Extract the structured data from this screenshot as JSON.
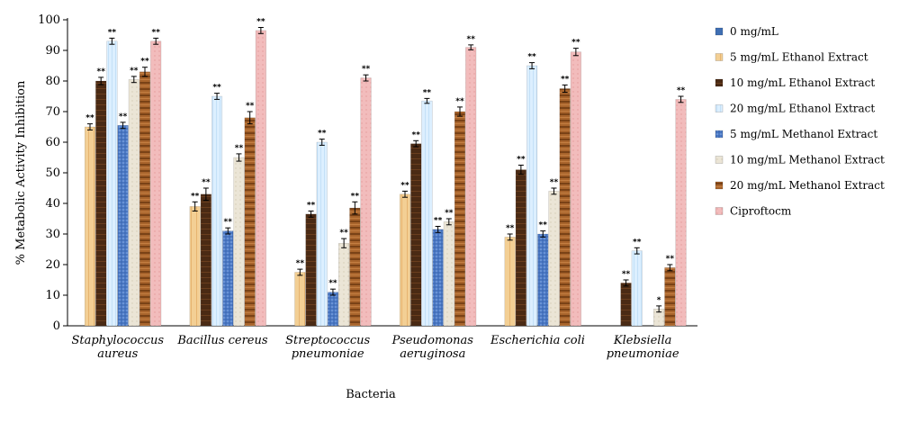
{
  "chart_data": {
    "type": "bar",
    "xlabel": "Bacteria",
    "ylabel": "% Metabolic Activity Inhibition",
    "ylim": [
      0,
      100
    ],
    "yticks": [
      0,
      10,
      20,
      30,
      40,
      50,
      60,
      70,
      80,
      90,
      100
    ],
    "legend_position": "right",
    "categories": [
      [
        "Staphylococcus",
        "aureus"
      ],
      [
        "Bacillus cereus"
      ],
      [
        "Streptococcus",
        "pneumoniae"
      ],
      [
        "Pseudomonas",
        "aeruginosa"
      ],
      [
        "Escherichia coli"
      ],
      [
        "Klebsiella",
        "pneumoniae"
      ]
    ],
    "series": [
      {
        "name": "0 mg/mL",
        "color": "#3f6fb3",
        "values": [
          0,
          0,
          0,
          0,
          0,
          0
        ],
        "errors": [
          0,
          0,
          0,
          0,
          0,
          0
        ],
        "sig": [
          "",
          "",
          "",
          "",
          "",
          ""
        ]
      },
      {
        "name": "5 mg/mL Ethanol Extract",
        "color": "#f2c98a",
        "values": [
          65,
          39,
          17.5,
          43,
          29,
          0
        ],
        "errors": [
          1,
          1.5,
          1,
          1,
          1,
          0
        ],
        "sig": [
          "**",
          "**",
          "**",
          "**",
          "**",
          ""
        ]
      },
      {
        "name": "10 mg/mL Ethanol Extract",
        "color": "#4a2a14",
        "values": [
          80,
          43,
          36.5,
          59.5,
          51,
          14
        ],
        "errors": [
          1.2,
          2,
          1,
          1,
          1.5,
          1
        ],
        "sig": [
          "**",
          "**",
          "**",
          "**",
          "**",
          "**"
        ]
      },
      {
        "name": "20 mg/mL Ethanol Extract",
        "color": "#d6ecfa",
        "values": [
          93,
          75,
          60,
          73.5,
          85,
          24.5
        ],
        "errors": [
          1,
          1,
          1,
          0.8,
          1,
          1
        ],
        "sig": [
          "**",
          "**",
          "**",
          "**",
          "**",
          "**"
        ]
      },
      {
        "name": "5 mg/mL Methanol Extract",
        "color": "#4a78c4",
        "values": [
          65.5,
          31,
          11,
          31.5,
          30,
          0
        ],
        "errors": [
          1,
          1,
          1,
          1,
          1,
          0
        ],
        "sig": [
          "**",
          "**",
          "**",
          "**",
          "**",
          ""
        ]
      },
      {
        "name": "10 mg/mL Methanol Extract",
        "color": "#e8e2d2",
        "values": [
          80.5,
          55,
          27,
          34,
          44,
          5.5
        ],
        "errors": [
          1,
          1.2,
          1.5,
          1,
          1,
          1
        ],
        "sig": [
          "**",
          "**",
          "**",
          "**",
          "**",
          "*"
        ]
      },
      {
        "name": "20 mg/mL Methanol Extract",
        "color": "#9c5a26",
        "values": [
          83,
          68,
          38.5,
          70,
          77.5,
          19
        ],
        "errors": [
          1.5,
          2,
          2,
          1.5,
          1.2,
          1
        ],
        "sig": [
          "**",
          "**",
          "**",
          "**",
          "**",
          "**"
        ]
      },
      {
        "name": "Ciproftocm",
        "color": "#f0b8b8",
        "values": [
          93,
          96.5,
          81,
          91,
          89.5,
          74
        ],
        "errors": [
          1,
          1,
          1,
          0.8,
          1.2,
          1
        ],
        "sig": [
          "**",
          "**",
          "**",
          "**",
          "**",
          "**"
        ]
      }
    ]
  }
}
